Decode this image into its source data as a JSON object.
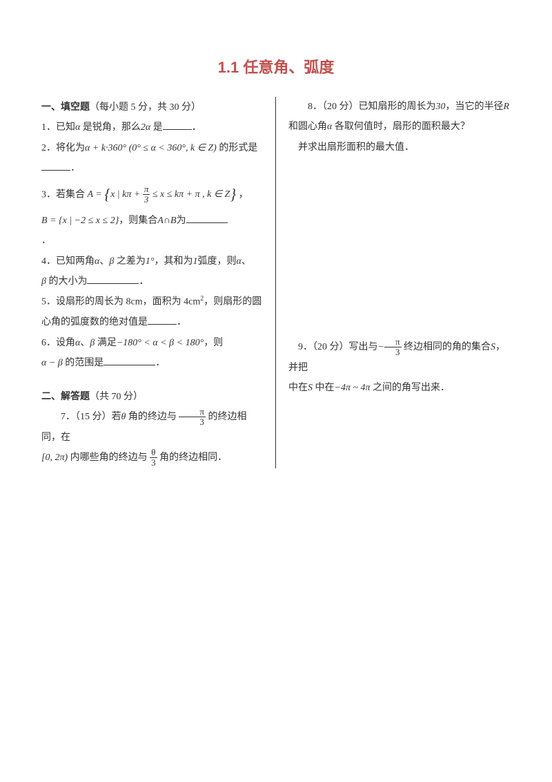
{
  "title": "1.1  任意角、弧度",
  "section1": {
    "heading": "一、填空题",
    "note": "（每小题 5 分，共 30 分）",
    "q1_a": "1．已知",
    "q1_b": " 是锐角，那么",
    "q1_c": " 是",
    "q1_end": "．",
    "q2_a": "2．将化为",
    "q2_b": " 的形式是",
    "q2_end": "．",
    "q3_a": "3．若集合",
    "q3_end": "，",
    "q3b_a": "，则集合",
    "q3b_c": "为",
    "q3b_end": "．",
    "q4_a": "4．已知两角",
    "q4_b": "、",
    "q4_c": " 之差为",
    "q4_d": "，其和为",
    "q4_e": "弧度，则",
    "q4_f": "、",
    "q4_g": " 的大小为",
    "q4_end": "．",
    "q5_a": "5．设扇形的周长为 8cm，面积为 4cm",
    "q5_b": "，则扇形的圆心角的弧度数的绝对值是",
    "q5_end": "．",
    "q6_a": "6．设角",
    "q6_b": "、",
    "q6_c": " 满足",
    "q6_d": "，则",
    "q6_e": " 的范围是",
    "q6_end": "．"
  },
  "section2": {
    "heading": "二、解答题",
    "note": "（共 70 分）",
    "q7_a": "7．（15 分）若",
    "q7_b": " 角的终边与",
    "q7_c": " 的终边相同，在",
    "q7_d": " 内哪些角的终边与",
    "q7_e": " 角的终边相同．"
  },
  "right": {
    "q8_a": "8．（20 分）已知扇形的周长为",
    "q8_b": "，当它的半径",
    "q8_c": " 和圆心角",
    "q8_d": " 各取何值时，扇形的面积最大？",
    "q8_e": "并求出扇形面积的最大值．",
    "q9_a": "9．（20 分）写出与",
    "q9_b": " 终边相同的角的集合",
    "q9_c": "，并把",
    "q9_d": " 中在",
    "q9_e": " 之间的角写出来．"
  },
  "math": {
    "alpha": "α",
    "beta": "β",
    "theta": "θ",
    "pi": "π",
    "deg": "°",
    "le": "≤",
    "in": "∈",
    "cap": "∩",
    "neg": "−",
    "A": "A",
    "B": "B",
    "R": "R",
    "S": "S",
    "Z": "Z",
    "k": "k",
    "x": "x",
    "one": "1",
    "two": "2",
    "three": "3",
    "four": "4",
    "thirty": "30",
    "t360": "360",
    "n180": "180",
    "sup2": "2",
    "q2_expr_mid": " (0° ≤ α < 360°, k ∈ Z)",
    "q3_set_inner": " | kπ + ",
    "q3_set_tail": " ≤ x ≤ kπ + π , k ∈ Z",
    "q3b_set": " | −2 ≤ x ≤ 2}",
    "q6_mid": " < α < β < ",
    "q7_int": "[0, 2π)",
    "q9_rng": "−4π ~ 4π"
  }
}
